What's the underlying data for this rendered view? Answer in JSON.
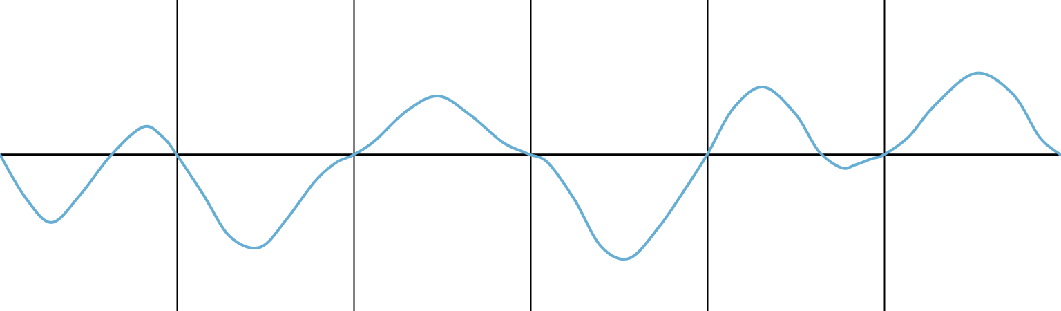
{
  "chart_data": {
    "type": "line",
    "title": "",
    "xlabel": "",
    "ylabel": "",
    "xlim": [
      0,
      6
    ],
    "ylim": [
      -1.0,
      1.0
    ],
    "grid": true,
    "x_gridlines": [
      1,
      2,
      3,
      4,
      5
    ],
    "zero_line": true,
    "legend": "none",
    "series": [
      {
        "color": "#67aed5",
        "x": [
          0,
          0.14,
          0.29,
          0.45,
          0.63,
          0.81,
          0.92,
          1.0,
          1.15,
          1.3,
          1.47,
          1.62,
          1.78,
          1.9,
          2.0,
          2.12,
          2.3,
          2.48,
          2.66,
          2.84,
          2.96,
          3.0,
          3.1,
          3.25,
          3.4,
          3.56,
          3.73,
          3.87,
          4.0,
          4.15,
          4.32,
          4.5,
          4.63,
          4.76,
          4.84,
          4.93,
          5.0,
          5.14,
          5.29,
          5.52,
          5.73,
          5.88,
          6.0
        ],
        "y": [
          0.0,
          -0.42,
          -0.68,
          -0.41,
          0.0,
          0.28,
          0.18,
          0.0,
          -0.4,
          -0.82,
          -0.93,
          -0.65,
          -0.27,
          -0.08,
          0.0,
          0.14,
          0.44,
          0.59,
          0.4,
          0.13,
          0.03,
          0.0,
          -0.08,
          -0.45,
          -0.92,
          -1.04,
          -0.72,
          -0.36,
          0.0,
          0.47,
          0.68,
          0.41,
          0.04,
          -0.13,
          -0.1,
          -0.04,
          0.0,
          0.18,
          0.5,
          0.82,
          0.61,
          0.18,
          0.0
        ]
      }
    ]
  }
}
